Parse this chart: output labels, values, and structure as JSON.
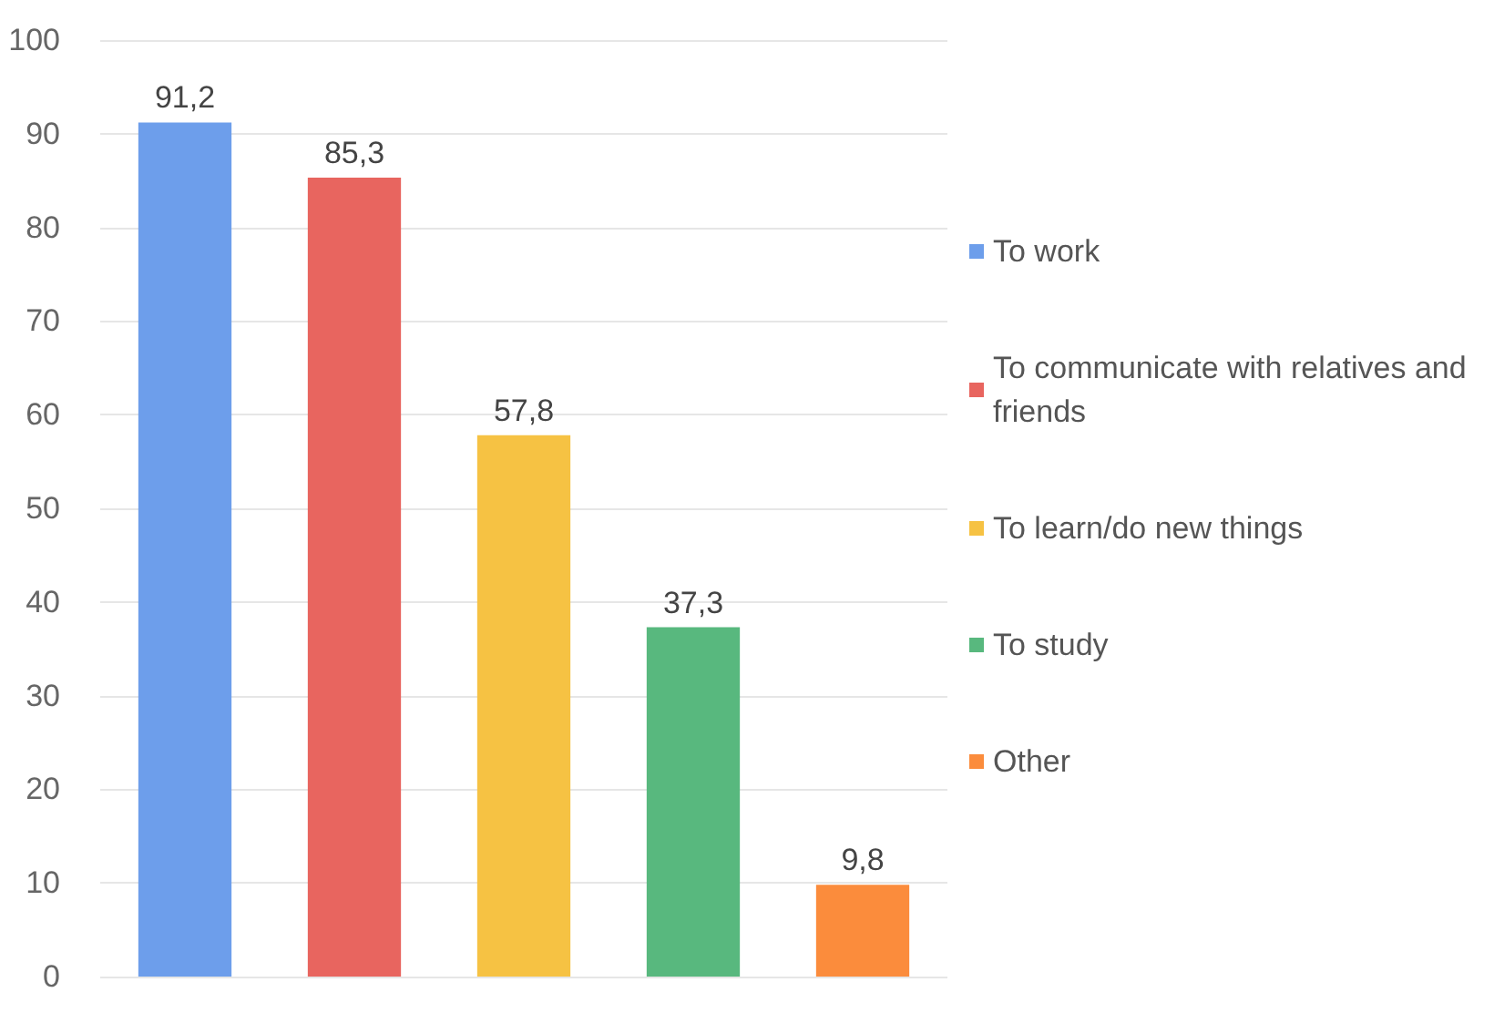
{
  "chart_data": {
    "type": "bar",
    "categories": [
      null,
      null,
      null,
      null,
      null
    ],
    "stacked": true,
    "series": [
      {
        "name": "To work",
        "color": "#6d9eeb",
        "values": [
          91.2,
          null,
          null,
          null,
          null
        ],
        "value_labels": [
          "91,2",
          null,
          null,
          null,
          null
        ]
      },
      {
        "name": "To communicate with relatives and friends",
        "color": "#e8655f",
        "values": [
          null,
          85.3,
          null,
          null,
          null
        ],
        "value_labels": [
          null,
          "85,3",
          null,
          null,
          null
        ]
      },
      {
        "name": "To learn/do new things",
        "color": "#f6c243",
        "values": [
          null,
          null,
          57.8,
          null,
          null
        ],
        "value_labels": [
          null,
          null,
          "57,8",
          null,
          null
        ]
      },
      {
        "name": "To study",
        "color": "#58b87e",
        "values": [
          null,
          null,
          null,
          37.3,
          null
        ],
        "value_labels": [
          null,
          null,
          null,
          "37,3",
          null
        ]
      },
      {
        "name": "Other",
        "color": "#fb8c3c",
        "values": [
          null,
          null,
          null,
          null,
          9.8
        ],
        "value_labels": [
          null,
          null,
          null,
          null,
          "9,8"
        ]
      }
    ],
    "ylim": [
      0,
      100
    ],
    "yticks": [
      0,
      10,
      20,
      30,
      40,
      50,
      60,
      70,
      80,
      90,
      100
    ],
    "grid": "y",
    "legend": "right"
  }
}
